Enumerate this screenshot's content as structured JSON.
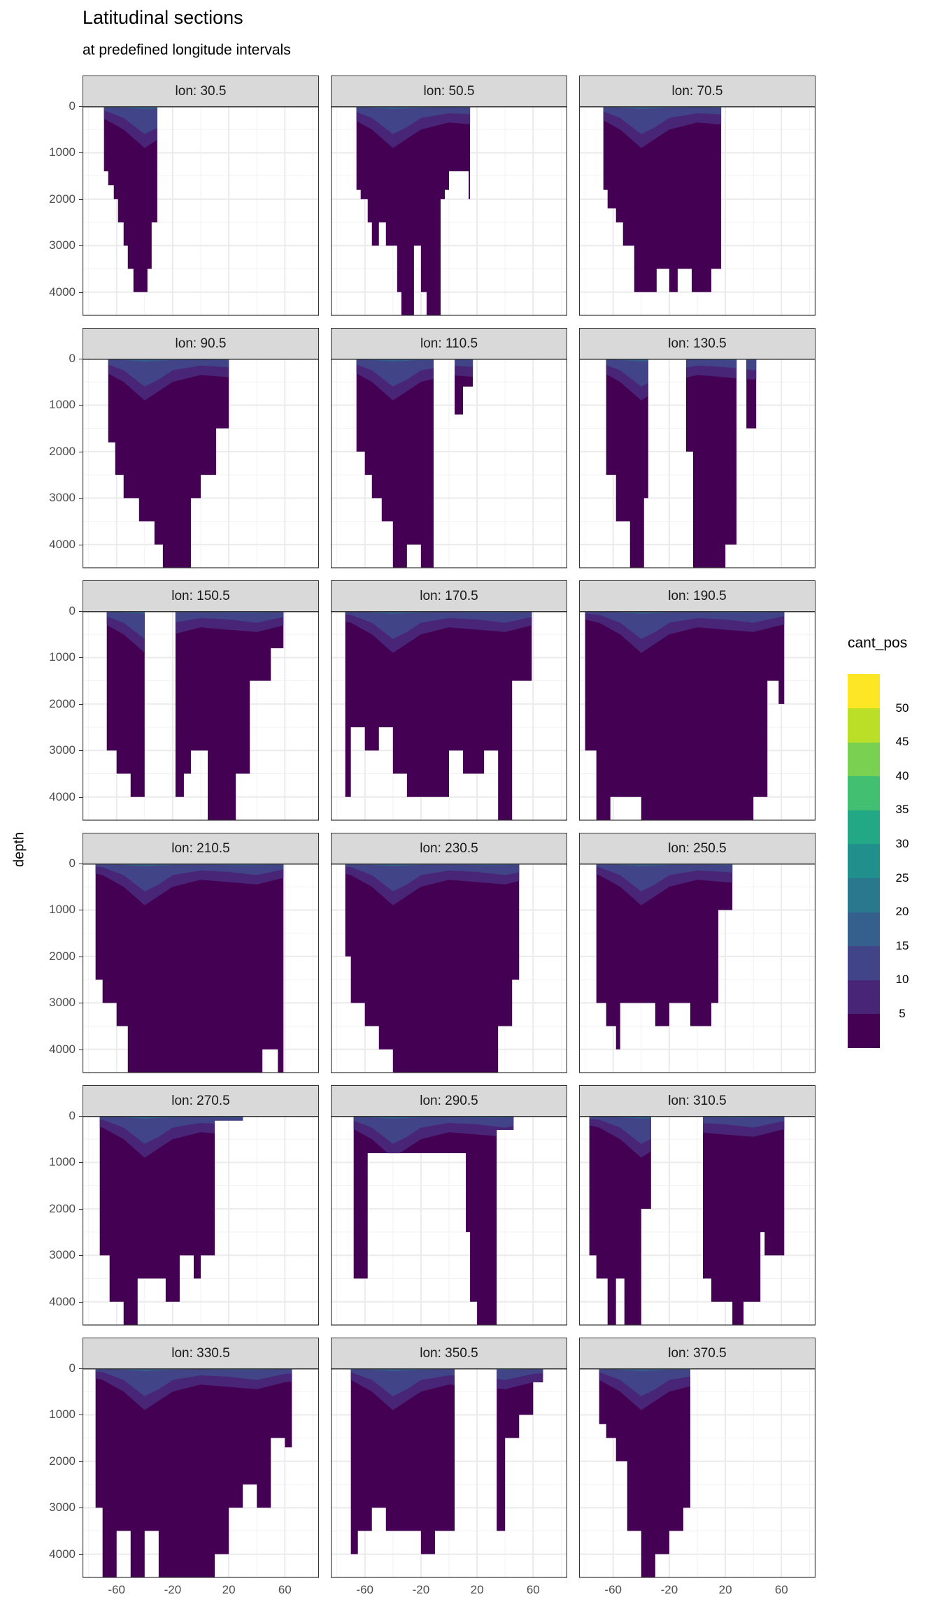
{
  "chart_data": {
    "type": "heatmap",
    "title": "Latitudinal sections",
    "subtitle": "at predefined longitude intervals",
    "xlabel": "",
    "ylabel": "depth",
    "xlim": [
      -84.3,
      84.3
    ],
    "ylim": [
      4500,
      0
    ],
    "x_ticks": [
      "-60",
      "-20",
      "20",
      "60"
    ],
    "x_tick_values": [
      -60,
      -20,
      20,
      60
    ],
    "x_minor_values": [
      -80,
      -40,
      0,
      40,
      80
    ],
    "y_ticks": [
      "0",
      "1000",
      "2000",
      "3000",
      "4000"
    ],
    "y_tick_values": [
      0,
      1000,
      2000,
      3000,
      4000
    ],
    "grid": true,
    "legend": {
      "title": "cant_pos",
      "position": "right",
      "labels": [
        "5",
        "10",
        "15",
        "20",
        "25",
        "30",
        "35",
        "40",
        "45",
        "50"
      ],
      "colors": [
        "#440154",
        "#482576",
        "#414487",
        "#35608D",
        "#2A788E",
        "#21908C",
        "#22A884",
        "#43BF71",
        "#7AD151",
        "#BBDF27",
        "#FDE725"
      ]
    },
    "mixed_layers": [
      {
        "class": "5-10",
        "color": "#482576",
        "bottom": [
          [
            -85,
            150
          ],
          [
            -70,
            250
          ],
          [
            -55,
            500
          ],
          [
            -40,
            900
          ],
          [
            -30,
            700
          ],
          [
            -20,
            500
          ],
          [
            0,
            350
          ],
          [
            20,
            400
          ],
          [
            40,
            450
          ],
          [
            60,
            300
          ],
          [
            85,
            200
          ]
        ]
      },
      {
        "class": "10-15",
        "color": "#414487",
        "bottom": [
          [
            -85,
            40
          ],
          [
            -70,
            80
          ],
          [
            -55,
            250
          ],
          [
            -40,
            600
          ],
          [
            -30,
            450
          ],
          [
            -20,
            250
          ],
          [
            0,
            150
          ],
          [
            20,
            180
          ],
          [
            40,
            250
          ],
          [
            60,
            120
          ],
          [
            85,
            60
          ]
        ]
      },
      {
        "class": "15-20",
        "color": "#35608D",
        "bottom": [
          [
            -85,
            0
          ],
          [
            -60,
            20
          ],
          [
            -40,
            60
          ],
          [
            -20,
            30
          ],
          [
            0,
            20
          ],
          [
            30,
            40
          ],
          [
            60,
            20
          ],
          [
            85,
            0
          ]
        ]
      }
    ],
    "panels": [
      {
        "label": "lon: 30.5",
        "profile": [
          [
            -69,
            1400
          ],
          [
            -66,
            1700
          ],
          [
            -62,
            2000
          ],
          [
            -59,
            2500
          ],
          [
            -55,
            3000
          ],
          [
            -52,
            3500
          ],
          [
            -48,
            4000
          ],
          [
            -40,
            4000
          ],
          [
            -38,
            3500
          ],
          [
            -35,
            2500
          ],
          [
            -31,
            0
          ]
        ]
      },
      {
        "label": "lon: 50.5",
        "profile": [
          [
            -66,
            1800
          ],
          [
            -63,
            2000
          ],
          [
            -58,
            2500
          ],
          [
            -55,
            3000
          ],
          [
            -50,
            2500
          ],
          [
            -45,
            3000
          ],
          [
            -40,
            3000
          ],
          [
            -37,
            4000
          ],
          [
            -34,
            4500
          ],
          [
            -28,
            4500
          ],
          [
            -25,
            3000
          ],
          [
            -20,
            4000
          ],
          [
            -16,
            4500
          ],
          [
            -9,
            4500
          ],
          [
            -6,
            2000
          ],
          [
            -3,
            1800
          ],
          [
            0,
            1400
          ],
          [
            12,
            1400
          ],
          [
            14,
            2000
          ],
          [
            15,
            0
          ]
        ]
      },
      {
        "label": "lon: 70.5",
        "profile": [
          [
            -67,
            1800
          ],
          [
            -64,
            2200
          ],
          [
            -58,
            2500
          ],
          [
            -53,
            3000
          ],
          [
            -45,
            4000
          ],
          [
            -29,
            3500
          ],
          [
            -20,
            4000
          ],
          [
            -14,
            3500
          ],
          [
            -4,
            4000
          ],
          [
            10,
            3500
          ],
          [
            17,
            0
          ]
        ]
      },
      {
        "label": "lon: 90.5",
        "profile": [
          [
            -66,
            1800
          ],
          [
            -61,
            2500
          ],
          [
            -55,
            3000
          ],
          [
            -44,
            3500
          ],
          [
            -33,
            4000
          ],
          [
            -27,
            4500
          ],
          [
            -7,
            3000
          ],
          [
            0,
            2500
          ],
          [
            11,
            1500
          ],
          [
            20,
            0
          ]
        ]
      },
      {
        "label": "lon: 110.5",
        "profile": [
          [
            -66,
            2000
          ],
          [
            -60,
            2500
          ],
          [
            -55,
            3000
          ],
          [
            -48,
            3500
          ],
          [
            -40,
            4500
          ],
          [
            -30,
            4000
          ],
          [
            -20,
            4500
          ],
          [
            -11,
            0
          ],
          [
            4,
            1200
          ],
          [
            10,
            600
          ],
          [
            17,
            0
          ]
        ]
      },
      {
        "label": "lon: 130.5",
        "profile": [
          [
            -65,
            2500
          ],
          [
            -58,
            3500
          ],
          [
            -48,
            4500
          ],
          [
            -38,
            3000
          ],
          [
            -35,
            0
          ],
          [
            -8,
            2000
          ],
          [
            -3,
            4500
          ],
          [
            20,
            4000
          ],
          [
            28,
            0
          ],
          [
            35,
            1500
          ],
          [
            42,
            0
          ]
        ]
      },
      {
        "label": "lon: 150.5",
        "profile": [
          [
            -67,
            3000
          ],
          [
            -60,
            3500
          ],
          [
            -50,
            4000
          ],
          [
            -40,
            0
          ],
          [
            -18,
            4000
          ],
          [
            -12,
            3500
          ],
          [
            -7,
            3000
          ],
          [
            5,
            4500
          ],
          [
            25,
            3500
          ],
          [
            35,
            1500
          ],
          [
            50,
            800
          ],
          [
            59,
            0
          ]
        ]
      },
      {
        "label": "lon: 170.5",
        "profile": [
          [
            -74,
            4000
          ],
          [
            -70,
            2500
          ],
          [
            -60,
            3000
          ],
          [
            -50,
            2500
          ],
          [
            -40,
            3500
          ],
          [
            -30,
            4000
          ],
          [
            0,
            3000
          ],
          [
            10,
            3500
          ],
          [
            25,
            3000
          ],
          [
            35,
            4500
          ],
          [
            45,
            1500
          ],
          [
            59,
            0
          ]
        ]
      },
      {
        "label": "lon: 190.5",
        "profile": [
          [
            -80,
            3000
          ],
          [
            -72,
            4500
          ],
          [
            -62,
            4000
          ],
          [
            -40,
            4500
          ],
          [
            40,
            4000
          ],
          [
            50,
            1500
          ],
          [
            58,
            2000
          ],
          [
            62,
            0
          ]
        ]
      },
      {
        "label": "lon: 210.5",
        "profile": [
          [
            -75,
            2500
          ],
          [
            -70,
            3000
          ],
          [
            -60,
            3500
          ],
          [
            -52,
            4500
          ],
          [
            44,
            4000
          ],
          [
            55,
            4500
          ],
          [
            59,
            0
          ]
        ]
      },
      {
        "label": "lon: 230.5",
        "profile": [
          [
            -74,
            2000
          ],
          [
            -70,
            3000
          ],
          [
            -60,
            3500
          ],
          [
            -50,
            4000
          ],
          [
            -40,
            4500
          ],
          [
            35,
            3500
          ],
          [
            45,
            2500
          ],
          [
            50,
            0
          ]
        ]
      },
      {
        "label": "lon: 250.5",
        "profile": [
          [
            -72,
            3000
          ],
          [
            -65,
            3500
          ],
          [
            -58,
            4000
          ],
          [
            -55,
            3000
          ],
          [
            -30,
            3500
          ],
          [
            -20,
            3000
          ],
          [
            -5,
            3500
          ],
          [
            10,
            3000
          ],
          [
            15,
            1000
          ],
          [
            25,
            0
          ]
        ]
      },
      {
        "label": "lon: 270.5",
        "profile": [
          [
            -72,
            3000
          ],
          [
            -65,
            4000
          ],
          [
            -55,
            4500
          ],
          [
            -45,
            3500
          ],
          [
            -25,
            4000
          ],
          [
            -15,
            3000
          ],
          [
            -5,
            3500
          ],
          [
            0,
            3000
          ],
          [
            10,
            100
          ],
          [
            30,
            0
          ]
        ]
      },
      {
        "label": "lon: 290.5",
        "profile": [
          [
            -68,
            3500
          ],
          [
            -58,
            800
          ],
          [
            12,
            2500
          ],
          [
            15,
            4000
          ],
          [
            20,
            4500
          ],
          [
            34,
            300
          ],
          [
            44,
            300
          ],
          [
            46,
            0
          ]
        ]
      },
      {
        "label": "lon: 310.5",
        "profile": [
          [
            -77,
            3000
          ],
          [
            -72,
            3500
          ],
          [
            -64,
            4500
          ],
          [
            -58,
            3500
          ],
          [
            -52,
            4500
          ],
          [
            -40,
            2000
          ],
          [
            -33,
            0
          ],
          [
            4,
            3500
          ],
          [
            10,
            4000
          ],
          [
            25,
            4500
          ],
          [
            33,
            4000
          ],
          [
            45,
            2500
          ],
          [
            48,
            3000
          ],
          [
            62,
            0
          ]
        ]
      },
      {
        "label": "lon: 330.5",
        "profile": [
          [
            -75,
            3000
          ],
          [
            -70,
            4500
          ],
          [
            -60,
            3500
          ],
          [
            -50,
            4500
          ],
          [
            -40,
            3500
          ],
          [
            -30,
            4500
          ],
          [
            10,
            4000
          ],
          [
            20,
            3000
          ],
          [
            30,
            2500
          ],
          [
            40,
            3000
          ],
          [
            50,
            1500
          ],
          [
            60,
            1700
          ],
          [
            65,
            0
          ]
        ]
      },
      {
        "label": "lon: 350.5",
        "profile": [
          [
            -70,
            4000
          ],
          [
            -65,
            3500
          ],
          [
            -55,
            3000
          ],
          [
            -45,
            3500
          ],
          [
            -20,
            4000
          ],
          [
            -10,
            3500
          ],
          [
            4,
            0
          ],
          [
            34,
            3500
          ],
          [
            40,
            1500
          ],
          [
            50,
            1000
          ],
          [
            60,
            300
          ],
          [
            67,
            0
          ]
        ]
      },
      {
        "label": "lon: 370.5",
        "profile": [
          [
            -70,
            1200
          ],
          [
            -65,
            1500
          ],
          [
            -58,
            2000
          ],
          [
            -50,
            3500
          ],
          [
            -40,
            4500
          ],
          [
            -30,
            4000
          ],
          [
            -20,
            3500
          ],
          [
            -10,
            3000
          ],
          [
            -5,
            0
          ]
        ]
      }
    ]
  }
}
